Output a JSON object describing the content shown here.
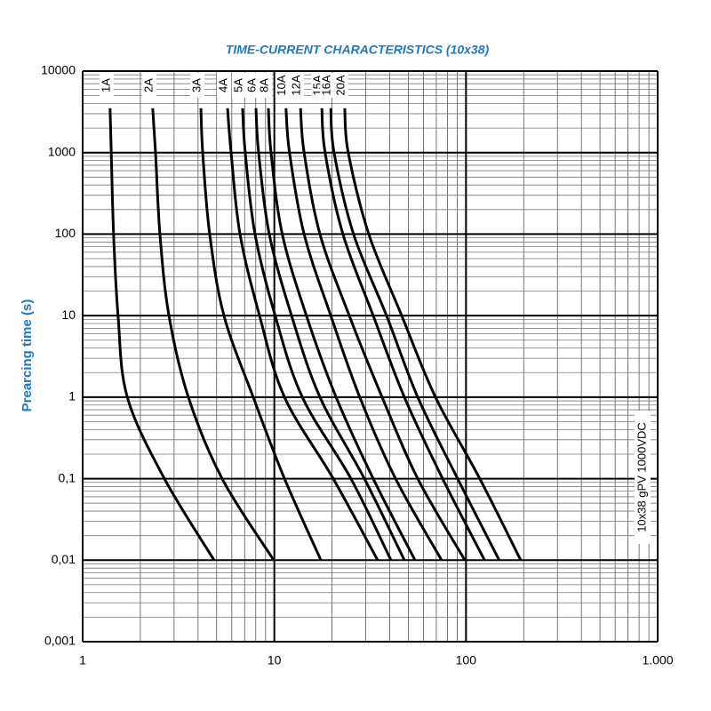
{
  "chart_data": {
    "type": "line",
    "title": "TIME-CURRENT CHARACTERISTICS (10x38)",
    "y_label": "Prearcing time (s)",
    "annotation": "10x38 gPV 1000VDC",
    "xscale": "log",
    "yscale": "log",
    "grid": true,
    "minor_grid": true,
    "xlim": [
      1,
      1000
    ],
    "ylim": [
      0.001,
      10000
    ],
    "xticks": [
      1,
      10,
      100,
      {
        "value": 1000,
        "label": "1.000"
      }
    ],
    "yticks": [
      10000,
      1000,
      100,
      10,
      1,
      {
        "value": 0.1,
        "label": "0,1"
      },
      {
        "value": 0.01,
        "label": "0,01"
      },
      {
        "value": 0.001,
        "label": "0,001"
      }
    ],
    "series": [
      {
        "name": "1A",
        "color": "#000000",
        "x": [
          1.39,
          1.41,
          1.45,
          1.53,
          1.71,
          2.67,
          4.85
        ],
        "values": [
          3500,
          1000,
          100,
          10,
          1,
          0.1,
          0.01
        ]
      },
      {
        "name": "2A",
        "color": "#000000",
        "x": [
          2.32,
          2.4,
          2.53,
          2.82,
          3.56,
          5.34,
          9.93
        ],
        "values": [
          3500,
          1000,
          100,
          10,
          1,
          0.1,
          0.01
        ]
      },
      {
        "name": "3A",
        "color": "#000000",
        "x": [
          4.14,
          4.23,
          4.6,
          5.46,
          7.76,
          11.3,
          17.5
        ],
        "values": [
          3500,
          1000,
          100,
          10,
          1,
          0.1,
          0.01
        ]
      },
      {
        "name": "4A",
        "color": "#000000",
        "x": [
          5.7,
          5.95,
          6.62,
          8.37,
          11.3,
          20.3,
          34.6
        ],
        "values": [
          3500,
          1000,
          100,
          10,
          1,
          0.1,
          0.01
        ]
      },
      {
        "name": "5A",
        "color": "#000000",
        "x": [
          6.83,
          7.05,
          7.93,
          10.1,
          14.0,
          25.1,
          40.6
        ],
        "values": [
          3500,
          1000,
          100,
          10,
          1,
          0.1,
          0.01
        ]
      },
      {
        "name": "6A",
        "color": "#000000",
        "x": [
          8.02,
          8.28,
          9.41,
          12.3,
          17.3,
          29.5,
          47.7
        ],
        "values": [
          3500,
          1000,
          100,
          10,
          1,
          0.1,
          0.01
        ]
      },
      {
        "name": "8A",
        "color": "#000000",
        "x": [
          9.31,
          9.61,
          11.0,
          14.7,
          21.0,
          32.8,
          54.2
        ],
        "values": [
          3500,
          1000,
          100,
          10,
          1,
          0.1,
          0.01
        ]
      },
      {
        "name": "10A",
        "color": "#000000",
        "x": [
          11.5,
          12.0,
          14.3,
          19.7,
          27.9,
          42.9,
          74.6
        ],
        "values": [
          3500,
          1000,
          100,
          10,
          1,
          0.1,
          0.01
        ]
      },
      {
        "name": "12A",
        "color": "#000000",
        "x": [
          13.7,
          14.3,
          17.3,
          24.6,
          36.5,
          56.0,
          98.6
        ],
        "values": [
          3500,
          1000,
          100,
          10,
          1,
          0.1,
          0.01
        ]
      },
      {
        "name": "15A",
        "color": "#000000",
        "x": [
          17.7,
          18.4,
          22.8,
          32.8,
          47.7,
          75.5,
          125
        ],
        "values": [
          3500,
          1000,
          100,
          10,
          1,
          0.1,
          0.01
        ]
      },
      {
        "name": "16A",
        "color": "#000000",
        "x": [
          19.7,
          20.5,
          25.9,
          38.5,
          56.0,
          90.4,
          149
        ],
        "values": [
          3500,
          1000,
          100,
          10,
          1,
          0.1,
          0.01
        ]
      },
      {
        "name": "20A",
        "color": "#000000",
        "x": [
          23.3,
          24.3,
          31.1,
          46.2,
          69.3,
          118,
          193
        ],
        "values": [
          3500,
          1000,
          100,
          10,
          1,
          0.1,
          0.01
        ]
      }
    ]
  }
}
